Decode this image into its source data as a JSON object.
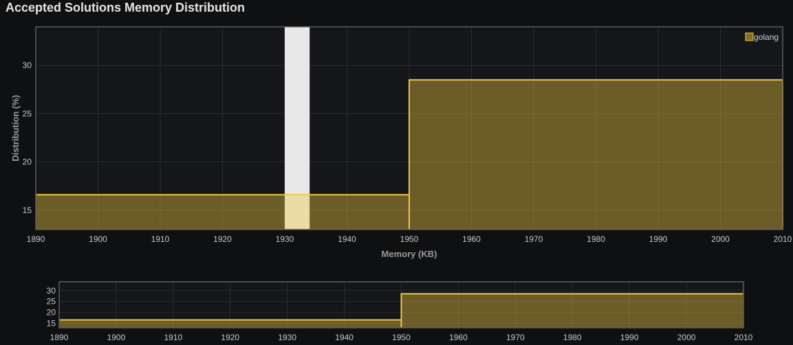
{
  "chart_data": {
    "type": "area",
    "title": "Accepted Solutions Memory Distribution",
    "xlabel": "Memory (KB)",
    "ylabel": "Distribution (%)",
    "xlim": [
      1890,
      2010
    ],
    "ylim": [
      13,
      34
    ],
    "x_ticks": [
      1890,
      1900,
      1910,
      1920,
      1930,
      1940,
      1950,
      1960,
      1970,
      1980,
      1990,
      2000,
      2010
    ],
    "y_ticks": [
      15,
      20,
      25,
      30
    ],
    "grid": true,
    "legend_position": "top-right",
    "series": [
      {
        "name": "golang",
        "color": "#f0c93e",
        "step": true,
        "points": [
          {
            "x": 1890,
            "y": 16.6
          },
          {
            "x": 1950,
            "y": 16.6
          },
          {
            "x": 1950,
            "y": 28.5
          },
          {
            "x": 2010,
            "y": 28.5
          }
        ]
      }
    ],
    "highlight_band": {
      "from": 1930,
      "to": 1934
    },
    "navigator": {
      "xlim": [
        1890,
        2010
      ],
      "ylim": [
        13,
        34
      ],
      "y_ticks": [
        15,
        20,
        25,
        30
      ],
      "x_ticks": [
        1890,
        1900,
        1910,
        1920,
        1930,
        1940,
        1950,
        1960,
        1970,
        1980,
        1990,
        2000,
        2010
      ]
    }
  }
}
